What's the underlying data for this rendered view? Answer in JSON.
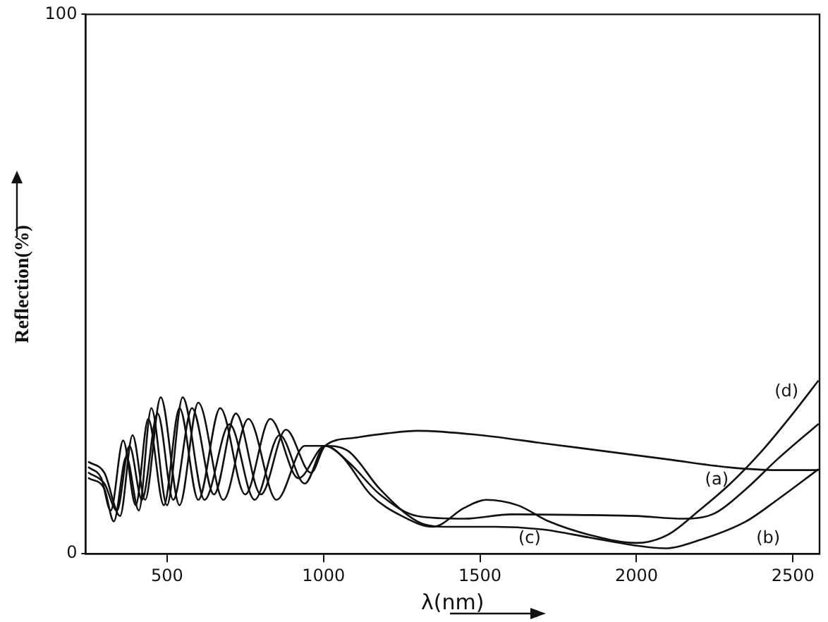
{
  "chart_data": {
    "type": "line",
    "xlabel": "λ(nm)",
    "ylabel": "Reflection(%)",
    "xlim": [
      240,
      2585
    ],
    "xticks": [
      500,
      1000,
      1500,
      2000,
      2500
    ],
    "ylim": [
      0,
      100
    ],
    "yticks": [
      0,
      100
    ],
    "grid": false,
    "legend": false,
    "marker": "none",
    "line_style": "solid",
    "series": [
      {
        "color": "#111111",
        "x": [
          250,
          300,
          340,
          380,
          420,
          470,
          520,
          580,
          650,
          720,
          800,
          880,
          960,
          1005,
          1100,
          1200,
          1300,
          1500,
          1700,
          1900,
          2100,
          2300,
          2450,
          2580
        ],
        "values": [
          15,
          13,
          8,
          20,
          10,
          26,
          10,
          27,
          11,
          26,
          11,
          23,
          15,
          20,
          21.5,
          22.3,
          22.8,
          22,
          20.5,
          19,
          17.5,
          16,
          15.5,
          15.5
        ]
      },
      {
        "color": "#111111",
        "x": [
          250,
          300,
          330,
          370,
          410,
          450,
          500,
          550,
          620,
          700,
          780,
          860,
          940,
          1005,
          1060,
          1150,
          1250,
          1350,
          1450,
          1520,
          1620,
          1720,
          1850,
          2000,
          2100,
          2200,
          2300,
          2400,
          2500,
          2580
        ],
        "values": [
          14,
          12,
          6,
          18,
          8,
          27,
          9,
          29,
          10,
          24,
          10,
          22,
          13,
          20,
          18,
          11,
          7,
          5,
          8.5,
          10,
          9,
          6,
          3.5,
          2,
          3.5,
          8,
          13,
          19,
          26,
          32
        ]
      },
      {
        "color": "#111111",
        "x": [
          250,
          290,
          320,
          360,
          400,
          440,
          490,
          540,
          600,
          670,
          750,
          830,
          920,
          1005,
          1080,
          1180,
          1300,
          1450,
          1600,
          1800,
          2000,
          2150,
          2250,
          2350,
          2450,
          2580
        ],
        "values": [
          16,
          14,
          8,
          21,
          9,
          25,
          9,
          27,
          10,
          27,
          11,
          25,
          14,
          20,
          17,
          11,
          7,
          6.5,
          7.3,
          7.2,
          7,
          6.5,
          7.5,
          12,
          17.5,
          24
        ]
      },
      {
        "color": "#111111",
        "x": [
          250,
          300,
          350,
          390,
          430,
          480,
          540,
          600,
          680,
          760,
          850,
          940,
          1005,
          1080,
          1180,
          1300,
          1400,
          1550,
          1700,
          1850,
          2000,
          2090,
          2200,
          2350,
          2450,
          2580
        ],
        "values": [
          17,
          15,
          7,
          22,
          10,
          29,
          9,
          28,
          10,
          25,
          10,
          20,
          20,
          19,
          12,
          6,
          5,
          5,
          4.5,
          3,
          1.5,
          1,
          2.5,
          6,
          10,
          15.6
        ]
      }
    ],
    "annotations": [
      "(d)",
      "(a)",
      "(b)",
      "(c)"
    ]
  }
}
